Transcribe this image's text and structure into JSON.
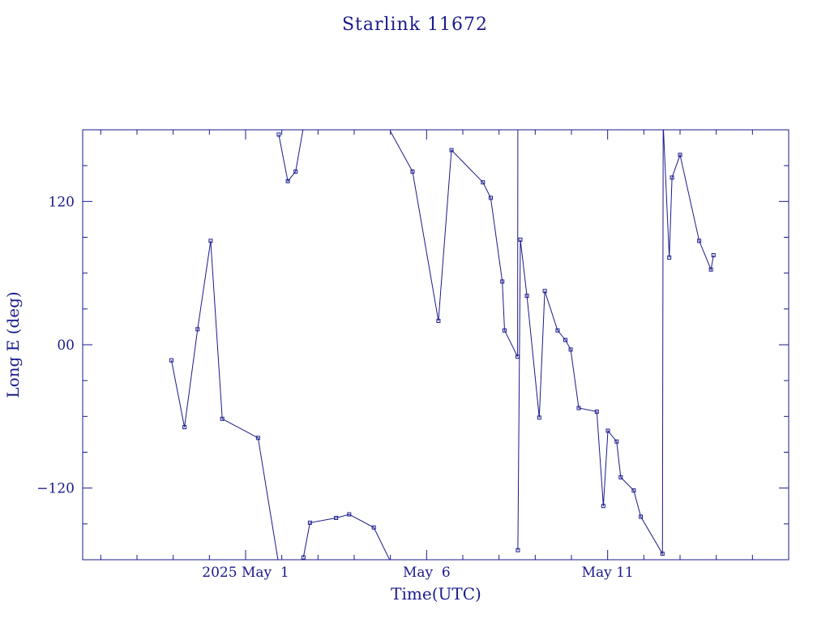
{
  "chart_data": {
    "type": "line",
    "title": "Starlink 11672",
    "xlabel": "Time(UTC)",
    "ylabel": "Long E (deg)",
    "xlim": [
      "2025-04-26T12:00",
      "2025-05-16T00:00"
    ],
    "ylim": [
      -180,
      180
    ],
    "x_tick_labels": [
      {
        "date": "2025-05-01",
        "label": "2025 May  1"
      },
      {
        "date": "2025-05-06",
        "label": "May  6"
      },
      {
        "date": "2025-05-11",
        "label": "May 11"
      }
    ],
    "y_tick_labels": [
      {
        "value": 120,
        "label": "120"
      },
      {
        "value": 0,
        "label": "00"
      },
      {
        "value": -120,
        "label": "−120"
      }
    ],
    "y_minor_step": 30,
    "x_minor_step_days": 1,
    "grid": false,
    "color": "#1a1a8c",
    "series": [
      {
        "points": [
          {
            "t": "2025-04-28T22:50",
            "lon": -13
          },
          {
            "t": "2025-04-29T07:30",
            "lon": -69
          },
          {
            "t": "2025-04-29T16:10",
            "lon": 13
          },
          {
            "t": "2025-04-30T00:50",
            "lon": 87
          },
          {
            "t": "2025-04-30T08:30",
            "lon": -62
          },
          {
            "t": "2025-05-01T08:15",
            "lon": -78
          },
          {
            "t": "2025-05-01T22:00",
            "lon": -184
          },
          {
            "t": "2025-05-01T22:00",
            "lon": 176
          },
          {
            "t": "2025-05-02T04:00",
            "lon": 137
          },
          {
            "t": "2025-05-02T09:10",
            "lon": 145
          },
          {
            "t": "2025-05-02T14:20",
            "lon": 182
          },
          {
            "t": "2025-05-02T14:20",
            "lon": -178
          },
          {
            "t": "2025-05-02T18:40",
            "lon": -149
          },
          {
            "t": "2025-05-03T12:00",
            "lon": -145
          },
          {
            "t": "2025-05-03T20:40",
            "lon": -142
          },
          {
            "t": "2025-05-04T13:00",
            "lon": -153
          },
          {
            "t": "2025-05-04T23:50",
            "lon": -181
          },
          {
            "t": "2025-05-04T23:50",
            "lon": 179
          },
          {
            "t": "2025-05-05T14:40",
            "lon": 145
          },
          {
            "t": "2025-05-06T07:50",
            "lon": 20
          },
          {
            "t": "2025-05-06T16:30",
            "lon": 163
          },
          {
            "t": "2025-05-07T13:20",
            "lon": 136
          },
          {
            "t": "2025-05-07T18:30",
            "lon": 123
          },
          {
            "t": "2025-05-08T02:10",
            "lon": 53
          },
          {
            "t": "2025-05-08T03:40",
            "lon": 12
          },
          {
            "t": "2025-05-08T12:20",
            "lon": -10
          },
          {
            "t": "2025-05-08T12:30",
            "lon": 182
          },
          {
            "t": "2025-05-08T12:30",
            "lon": -172
          },
          {
            "t": "2025-05-08T14:10",
            "lon": 88
          },
          {
            "t": "2025-05-08T18:30",
            "lon": 41
          },
          {
            "t": "2025-05-09T02:40",
            "lon": -61
          },
          {
            "t": "2025-05-09T06:20",
            "lon": 45
          },
          {
            "t": "2025-05-09T14:50",
            "lon": 12
          },
          {
            "t": "2025-05-09T20:00",
            "lon": 4
          },
          {
            "t": "2025-05-09T23:30",
            "lon": -4
          },
          {
            "t": "2025-05-10T04:50",
            "lon": -53
          },
          {
            "t": "2025-05-10T16:50",
            "lon": -56
          },
          {
            "t": "2025-05-10T21:10",
            "lon": -135
          },
          {
            "t": "2025-05-11T00:10",
            "lon": -72
          },
          {
            "t": "2025-05-11T06:00",
            "lon": -81
          },
          {
            "t": "2025-05-11T08:40",
            "lon": -111
          },
          {
            "t": "2025-05-11T17:20",
            "lon": -122
          },
          {
            "t": "2025-05-11T22:00",
            "lon": -144
          },
          {
            "t": "2025-05-12T12:20",
            "lon": -175
          },
          {
            "t": "2025-05-12T12:50",
            "lon": 185
          },
          {
            "t": "2025-05-12T16:50",
            "lon": 73
          },
          {
            "t": "2025-05-12T18:40",
            "lon": 140
          },
          {
            "t": "2025-05-13T00:00",
            "lon": 159
          },
          {
            "t": "2025-05-13T12:40",
            "lon": 87
          },
          {
            "t": "2025-05-13T20:30",
            "lon": 63
          },
          {
            "t": "2025-05-13T22:10",
            "lon": 75
          }
        ]
      }
    ]
  }
}
